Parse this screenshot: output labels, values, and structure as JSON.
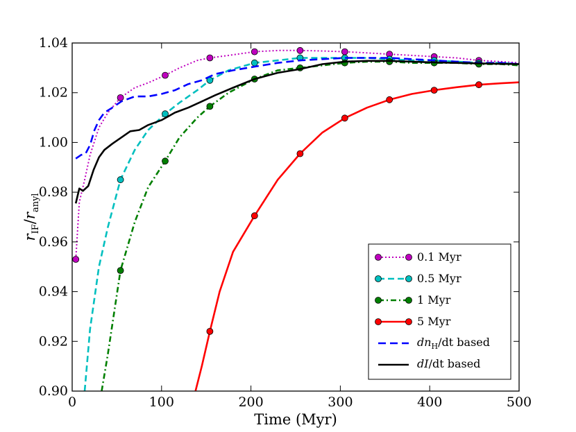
{
  "chart_data": {
    "type": "line",
    "title": "",
    "xlabel": "Time (Myr)",
    "ylabel_main": "r",
    "ylabel_num_sub": "IF",
    "ylabel_den_sub": "anyl",
    "xlim": [
      0,
      500
    ],
    "ylim": [
      0.9,
      1.04
    ],
    "x_ticks": [
      0,
      100,
      200,
      300,
      400,
      500
    ],
    "y_ticks": [
      0.9,
      0.92,
      0.94,
      0.96,
      0.98,
      1.0,
      1.02,
      1.04
    ],
    "x_tick_labels": [
      "0",
      "100",
      "200",
      "300",
      "400",
      "500"
    ],
    "y_tick_labels": [
      "0.90",
      "0.92",
      "0.94",
      "0.96",
      "0.98",
      "1.00",
      "1.02",
      "1.04"
    ],
    "grid": false,
    "legend_position": "lower-right",
    "series": [
      {
        "name": "0.1 Myr",
        "color": "#bf00bf",
        "marker_color": "#bf00bf",
        "style": "dotted",
        "points": [
          [
            4,
            0.953
          ],
          [
            8,
            0.976
          ],
          [
            14,
            0.985
          ],
          [
            20,
            0.995
          ],
          [
            30,
            1.006
          ],
          [
            40,
            1.012
          ],
          [
            54,
            1.018
          ],
          [
            70,
            1.022
          ],
          [
            85,
            1.024
          ],
          [
            104,
            1.027
          ],
          [
            120,
            1.03
          ],
          [
            140,
            1.033
          ],
          [
            154,
            1.034
          ],
          [
            175,
            1.035
          ],
          [
            204,
            1.0365
          ],
          [
            230,
            1.037
          ],
          [
            255,
            1.037
          ],
          [
            280,
            1.0368
          ],
          [
            305,
            1.0365
          ],
          [
            330,
            1.036
          ],
          [
            355,
            1.0355
          ],
          [
            380,
            1.035
          ],
          [
            405,
            1.0345
          ],
          [
            430,
            1.034
          ],
          [
            455,
            1.033
          ],
          [
            480,
            1.0325
          ],
          [
            500,
            1.032
          ]
        ],
        "markers": [
          [
            4,
            0.953
          ],
          [
            54,
            1.018
          ],
          [
            104,
            1.027
          ],
          [
            154,
            1.034
          ],
          [
            204,
            1.0365
          ],
          [
            255,
            1.037
          ],
          [
            305,
            1.0365
          ],
          [
            355,
            1.0355
          ],
          [
            405,
            1.0345
          ],
          [
            455,
            1.033
          ]
        ]
      },
      {
        "name": "0.5 Myr",
        "color": "#00bfbf",
        "marker_color": "#00bfbf",
        "style": "dashed",
        "points": [
          [
            14,
            0.9
          ],
          [
            20,
            0.925
          ],
          [
            30,
            0.95
          ],
          [
            40,
            0.966
          ],
          [
            54,
            0.985
          ],
          [
            70,
            0.997
          ],
          [
            85,
            1.005
          ],
          [
            104,
            1.0115
          ],
          [
            120,
            1.016
          ],
          [
            140,
            1.021
          ],
          [
            154,
            1.025
          ],
          [
            175,
            1.029
          ],
          [
            204,
            1.032
          ],
          [
            230,
            1.033
          ],
          [
            255,
            1.034
          ],
          [
            280,
            1.034
          ],
          [
            305,
            1.034
          ],
          [
            330,
            1.034
          ],
          [
            355,
            1.0335
          ],
          [
            380,
            1.033
          ],
          [
            405,
            1.033
          ],
          [
            430,
            1.0325
          ],
          [
            455,
            1.032
          ],
          [
            480,
            1.032
          ],
          [
            500,
            1.0315
          ]
        ],
        "markers": [
          [
            54,
            0.985
          ],
          [
            104,
            1.0115
          ],
          [
            154,
            1.025
          ],
          [
            204,
            1.032
          ],
          [
            255,
            1.034
          ],
          [
            305,
            1.034
          ],
          [
            355,
            1.0335
          ],
          [
            405,
            1.033
          ],
          [
            455,
            1.032
          ]
        ]
      },
      {
        "name": "1 Myr",
        "color": "#007f00",
        "marker_color": "#007f00",
        "style": "dashdot",
        "points": [
          [
            33,
            0.9
          ],
          [
            40,
            0.915
          ],
          [
            54,
            0.9485
          ],
          [
            70,
            0.968
          ],
          [
            85,
            0.982
          ],
          [
            104,
            0.9925
          ],
          [
            120,
            1.002
          ],
          [
            140,
            1.01
          ],
          [
            154,
            1.0145
          ],
          [
            175,
            1.02
          ],
          [
            204,
            1.0255
          ],
          [
            230,
            1.029
          ],
          [
            255,
            1.03
          ],
          [
            280,
            1.031
          ],
          [
            305,
            1.032
          ],
          [
            330,
            1.0325
          ],
          [
            355,
            1.0325
          ],
          [
            380,
            1.032
          ],
          [
            405,
            1.032
          ],
          [
            430,
            1.032
          ],
          [
            455,
            1.0315
          ],
          [
            480,
            1.0315
          ],
          [
            500,
            1.031
          ]
        ],
        "markers": [
          [
            54,
            0.9485
          ],
          [
            104,
            0.9925
          ],
          [
            154,
            1.0145
          ],
          [
            204,
            1.0255
          ],
          [
            255,
            1.03
          ],
          [
            305,
            1.032
          ],
          [
            355,
            1.0325
          ],
          [
            405,
            1.032
          ],
          [
            455,
            1.0315
          ]
        ]
      },
      {
        "name": "5 Myr",
        "color": "#ff0000",
        "marker_color": "#ff0000",
        "style": "solid",
        "points": [
          [
            138,
            0.9
          ],
          [
            145,
            0.91
          ],
          [
            154,
            0.924
          ],
          [
            165,
            0.94
          ],
          [
            180,
            0.956
          ],
          [
            204,
            0.9705
          ],
          [
            230,
            0.985
          ],
          [
            255,
            0.9955
          ],
          [
            280,
            1.004
          ],
          [
            305,
            1.0098
          ],
          [
            330,
            1.014
          ],
          [
            355,
            1.0172
          ],
          [
            380,
            1.0195
          ],
          [
            405,
            1.021
          ],
          [
            430,
            1.0222
          ],
          [
            455,
            1.0232
          ],
          [
            480,
            1.0238
          ],
          [
            500,
            1.0242
          ]
        ],
        "markers": [
          [
            154,
            0.924
          ],
          [
            204,
            0.9705
          ],
          [
            255,
            0.9955
          ],
          [
            305,
            1.0098
          ],
          [
            355,
            1.0172
          ],
          [
            405,
            1.021
          ],
          [
            455,
            1.0232
          ]
        ]
      },
      {
        "name_prefix": "dn",
        "name_sub": "H",
        "name_suffix": "/dt based",
        "color": "#0000ff",
        "style": "longdash",
        "points": [
          [
            4,
            0.9935
          ],
          [
            10,
            0.995
          ],
          [
            15,
            0.9955
          ],
          [
            20,
            0.999
          ],
          [
            25,
            1.005
          ],
          [
            30,
            1.009
          ],
          [
            36,
            1.012
          ],
          [
            45,
            1.014
          ],
          [
            55,
            1.0165
          ],
          [
            70,
            1.0185
          ],
          [
            85,
            1.0185
          ],
          [
            100,
            1.0195
          ],
          [
            115,
            1.021
          ],
          [
            130,
            1.0235
          ],
          [
            145,
            1.025
          ],
          [
            160,
            1.0275
          ],
          [
            180,
            1.029
          ],
          [
            204,
            1.0305
          ],
          [
            230,
            1.032
          ],
          [
            255,
            1.033
          ],
          [
            280,
            1.0335
          ],
          [
            305,
            1.034
          ],
          [
            330,
            1.034
          ],
          [
            355,
            1.034
          ],
          [
            380,
            1.0335
          ],
          [
            405,
            1.033
          ],
          [
            430,
            1.0325
          ],
          [
            455,
            1.032
          ],
          [
            480,
            1.032
          ],
          [
            500,
            1.0315
          ]
        ]
      },
      {
        "name_prefix": "dI",
        "name_sub": "",
        "name_suffix": "/dt based",
        "color": "#000000",
        "style": "solid",
        "points": [
          [
            4,
            0.9755
          ],
          [
            8,
            0.9815
          ],
          [
            12,
            0.9805
          ],
          [
            18,
            0.9825
          ],
          [
            24,
            0.989
          ],
          [
            30,
            0.994
          ],
          [
            36,
            0.997
          ],
          [
            45,
            0.9995
          ],
          [
            55,
            1.002
          ],
          [
            65,
            1.0045
          ],
          [
            75,
            1.005
          ],
          [
            85,
            1.007
          ],
          [
            100,
            1.009
          ],
          [
            115,
            1.012
          ],
          [
            130,
            1.014
          ],
          [
            145,
            1.0165
          ],
          [
            160,
            1.019
          ],
          [
            180,
            1.022
          ],
          [
            204,
            1.0255
          ],
          [
            230,
            1.028
          ],
          [
            255,
            1.0295
          ],
          [
            280,
            1.0315
          ],
          [
            305,
            1.0325
          ],
          [
            330,
            1.0328
          ],
          [
            355,
            1.0328
          ],
          [
            380,
            1.0325
          ],
          [
            405,
            1.0322
          ],
          [
            430,
            1.032
          ],
          [
            455,
            1.0318
          ],
          [
            480,
            1.0316
          ],
          [
            500,
            1.0315
          ]
        ]
      }
    ]
  }
}
